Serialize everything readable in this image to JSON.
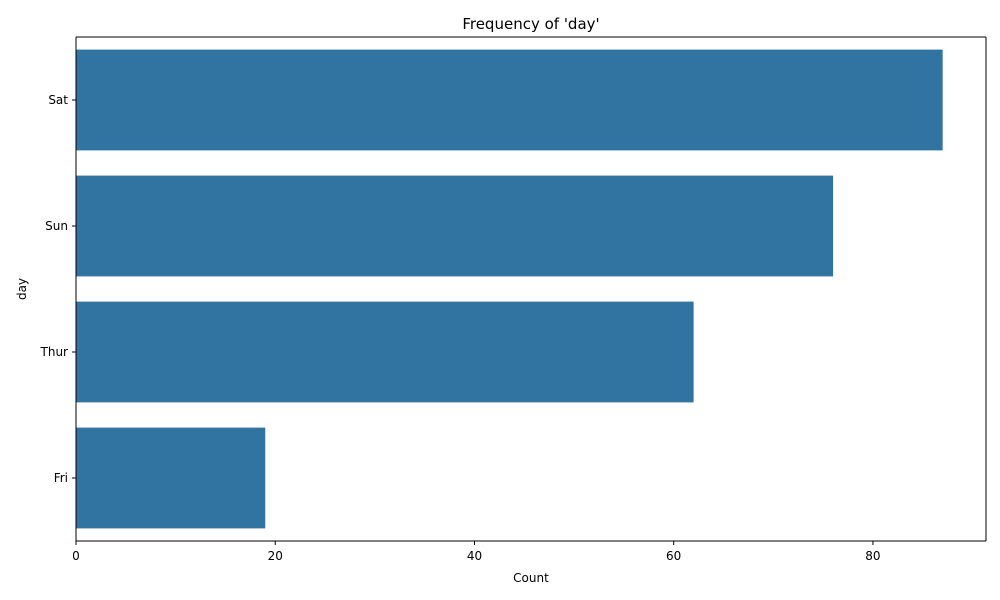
{
  "chart_data": {
    "type": "bar",
    "orientation": "horizontal",
    "title": "Frequency of 'day'",
    "xlabel": "Count",
    "ylabel": "day",
    "categories": [
      "Sat",
      "Sun",
      "Thur",
      "Fri"
    ],
    "values": [
      87,
      76,
      62,
      19
    ],
    "xlim": [
      0,
      91.35
    ],
    "xticks": [
      0,
      20,
      40,
      60,
      80
    ],
    "grid": false,
    "bar_color": "#3274a1"
  }
}
